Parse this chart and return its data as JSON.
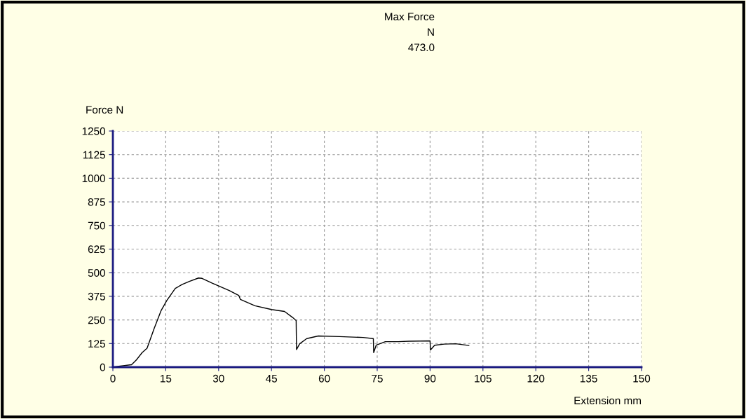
{
  "chart_data": {
    "type": "line",
    "title": "Max Force",
    "subtitle": "N",
    "annotations": [
      "473.0"
    ],
    "xlabel": "Extension mm",
    "ylabel": "Force N",
    "series": [
      {
        "color": "#000000",
        "x": [
          0,
          1.7,
          5.3,
          6.7,
          8.3,
          9.7,
          11.7,
          13.7,
          15.3,
          17.7,
          19.7,
          21.7,
          24.3,
          25.3,
          28.3,
          33,
          35.7,
          36.2,
          40.3,
          45,
          48.7,
          51,
          52,
          52.1,
          53,
          55,
          58.3,
          64.3,
          71,
          73.9,
          74,
          74.7,
          77.3,
          81,
          84,
          90,
          90.1,
          91.3,
          94,
          97.3,
          101
        ],
        "values": [
          0,
          5,
          13,
          39,
          77,
          100,
          204,
          300,
          353,
          417,
          438,
          454,
          472,
          470,
          444,
          406,
          380,
          358,
          325,
          305,
          295,
          263,
          247,
          93,
          124,
          151,
          165,
          162,
          157,
          151,
          77,
          116,
          135,
          135,
          137,
          139,
          91,
          116,
          122,
          124,
          115
        ]
      }
    ],
    "xlim": [
      0,
      150
    ],
    "xticks": [
      0,
      15,
      30,
      45,
      60,
      75,
      90,
      105,
      120,
      135,
      150
    ],
    "ylim": [
      0,
      1250
    ],
    "yticks": [
      0,
      125,
      250,
      375,
      500,
      625,
      750,
      875,
      1000,
      1125,
      1250
    ],
    "grid": true,
    "marker": "none",
    "line_style": "solid"
  }
}
